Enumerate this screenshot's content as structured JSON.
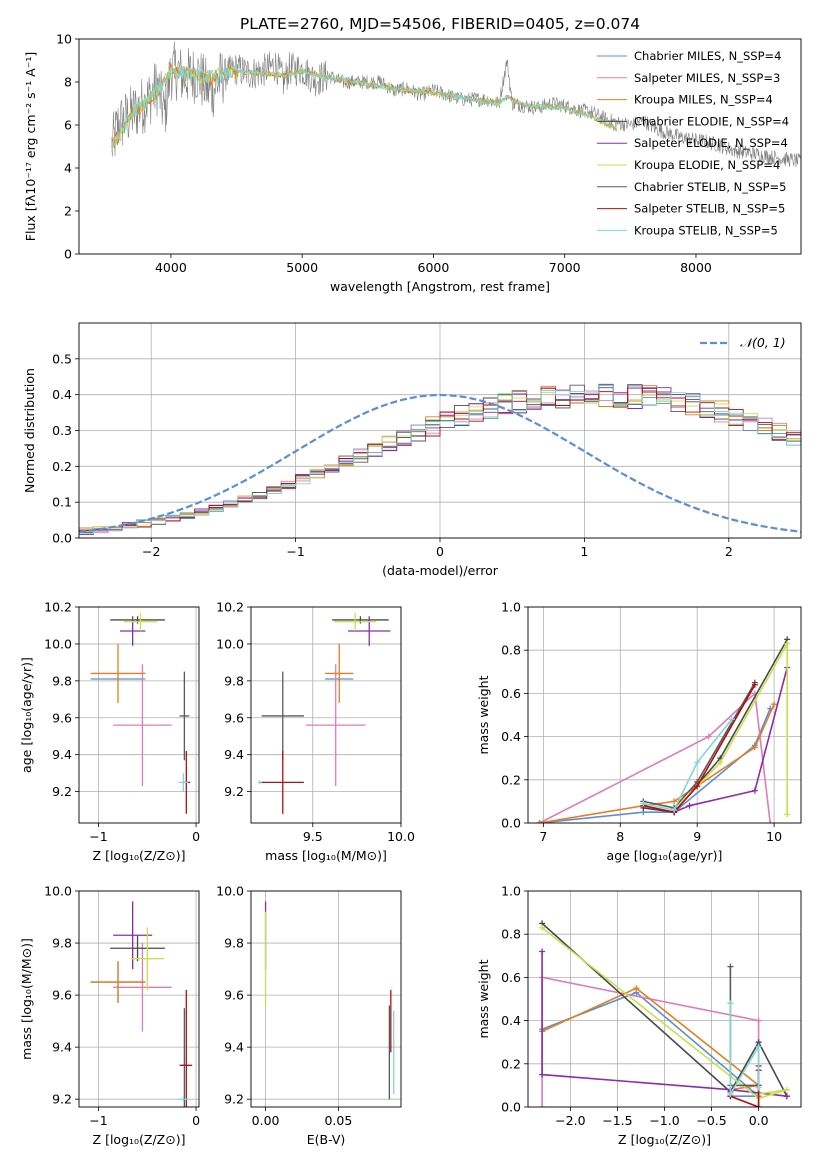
{
  "figure": {
    "title": "PLATE=2760, MJD=54506, FIBERID=0405, z=0.074"
  },
  "colors": {
    "Chabrier MILES": "#5b8ed6",
    "Salpeter MILES": "#e17bb8",
    "Kroupa MILES": "#e67e22",
    "Chabrier ELODIE": "#4a4a4a",
    "Salpeter ELODIE": "#8e2ca8",
    "Kroupa ELODIE": "#c8e04a",
    "Chabrier STELIB": "#5a5a5a",
    "Salpeter STELIB": "#b01010",
    "Kroupa STELIB": "#7fd6dc",
    "gaussian": "#5b8ed6",
    "grid": "#b0b0b0"
  },
  "chart_data": [
    {
      "id": "spectrum",
      "type": "line",
      "title": "PLATE=2760, MJD=54506, FIBERID=0405, z=0.074",
      "xlabel": "wavelength [Angstrom, rest frame]",
      "ylabel": "Flux [fλ10⁻¹⁷ erg cm⁻² s⁻¹ A⁻¹]",
      "xlim": [
        3300,
        8800
      ],
      "ylim": [
        0,
        10
      ],
      "xticks": [
        4000,
        5000,
        6000,
        7000,
        8000
      ],
      "yticks": [
        0,
        2,
        4,
        6,
        8,
        10
      ],
      "grid": false,
      "legend_position": "top-right",
      "legend": [
        "Chabrier MILES, N_SSP=4",
        "Salpeter MILES, N_SSP=3",
        "Kroupa MILES, N_SSP=4",
        "Chabrier ELODIE, N_SSP=4",
        "Salpeter ELODIE, N_SSP=4",
        "Kroupa ELODIE, N_SSP=4",
        "Chabrier STELIB, N_SSP=5",
        "Salpeter STELIB, N_SSP=5",
        "Kroupa STELIB, N_SSP=5"
      ],
      "data_series": {
        "name": "data",
        "x": [
          3550,
          3600,
          3700,
          3800,
          3900,
          3950,
          4000,
          4050,
          4100,
          4200,
          4300,
          4400,
          4500,
          4600,
          4700,
          4800,
          4860,
          4900,
          5000,
          5100,
          5200,
          5300,
          5400,
          5500,
          5600,
          5700,
          5800,
          5900,
          6000,
          6100,
          6200,
          6300,
          6400,
          6500,
          6560,
          6600,
          6700,
          6800,
          6900,
          7000,
          7100,
          7200,
          7300,
          7400,
          7500,
          7600,
          7700,
          7800,
          7900,
          8000,
          8100,
          8200,
          8300,
          8400,
          8500,
          8600,
          8700,
          8800
        ],
        "y": [
          5.0,
          6.0,
          6.5,
          7.0,
          7.8,
          6.5,
          8.5,
          8.5,
          8.2,
          8.4,
          7.5,
          8.3,
          8.6,
          8.4,
          8.5,
          8.8,
          8.0,
          8.6,
          8.6,
          8.1,
          8.3,
          8.0,
          8.0,
          8.0,
          8.0,
          7.6,
          7.7,
          7.4,
          7.6,
          7.4,
          7.2,
          7.2,
          7.2,
          7.0,
          9.0,
          7.0,
          6.9,
          6.8,
          7.0,
          6.9,
          6.7,
          6.6,
          6.3,
          6.1,
          6.0,
          6.2,
          5.8,
          5.6,
          5.4,
          5.3,
          5.2,
          5.0,
          4.8,
          4.7,
          4.6,
          4.5,
          4.4,
          4.3
        ]
      },
      "model_series": {
        "x": [
          3550,
          3700,
          3900,
          4000,
          4100,
          4300,
          4500,
          4700,
          4860,
          5000,
          5200,
          5500,
          5800,
          6000,
          6300,
          6500,
          6560,
          6700,
          7000,
          7200,
          7300,
          7400
        ],
        "y": [
          5.0,
          6.5,
          7.6,
          8.5,
          8.4,
          8.2,
          8.5,
          8.4,
          8.3,
          8.5,
          8.2,
          7.9,
          7.6,
          7.5,
          7.2,
          7.0,
          7.3,
          6.9,
          6.8,
          6.4,
          6.1,
          5.8
        ]
      }
    },
    {
      "id": "residuals",
      "type": "line",
      "xlabel": "(data-model)/error",
      "ylabel": "Normed distribution",
      "xlim": [
        -2.5,
        2.5
      ],
      "ylim": [
        0,
        0.6
      ],
      "xticks": [
        -2,
        -1,
        0,
        1,
        2
      ],
      "yticks": [
        0.0,
        0.1,
        0.2,
        0.3,
        0.4,
        0.5
      ],
      "grid": true,
      "legend_position": "top-right",
      "legend": [
        "𝒩(0, 1)"
      ],
      "hist_bin_width": 0.1,
      "hist_bins_start": -2.5,
      "hist_base": [
        0.018,
        0.022,
        0.028,
        0.034,
        0.04,
        0.047,
        0.055,
        0.063,
        0.073,
        0.083,
        0.095,
        0.107,
        0.12,
        0.134,
        0.149,
        0.164,
        0.18,
        0.196,
        0.213,
        0.23,
        0.247,
        0.264,
        0.28,
        0.296,
        0.312,
        0.326,
        0.34,
        0.352,
        0.363,
        0.372,
        0.38,
        0.386,
        0.391,
        0.394,
        0.397,
        0.398,
        0.398,
        0.397,
        0.394,
        0.391,
        0.386,
        0.38,
        0.372,
        0.363,
        0.352,
        0.34,
        0.326,
        0.312,
        0.296,
        0.28,
        0.264,
        0.247,
        0.23,
        0.213,
        0.196,
        0.18,
        0.164,
        0.149,
        0.134,
        0.12,
        0.107,
        0.095,
        0.083,
        0.073,
        0.063,
        0.055,
        0.047,
        0.04,
        0.034,
        0.028,
        0.022,
        0.018
      ]
    },
    {
      "id": "age-vs-Z",
      "type": "scatter",
      "xlabel": "Z [log₁₀(Z/Z⊙)]",
      "ylabel": "age  [log₁₀(age/yr)]",
      "xlim": [
        -1.2,
        0.03
      ],
      "ylim": [
        9.03,
        10.2
      ],
      "xticks": [
        -1,
        0
      ],
      "yticks": [
        9.2,
        9.4,
        9.6,
        9.8,
        10.0,
        10.2
      ],
      "grid": true,
      "points": [
        {
          "series": "Chabrier MILES",
          "x": -0.8,
          "y": 9.81,
          "xerr": 0.28,
          "yerr": 0.01
        },
        {
          "series": "Salpeter MILES",
          "x": -0.55,
          "y": 9.56,
          "xerr": 0.3,
          "yerr": 0.33
        },
        {
          "series": "Kroupa MILES",
          "x": -0.8,
          "y": 9.84,
          "xerr": 0.28,
          "yerr": 0.16
        },
        {
          "series": "Chabrier ELODIE",
          "x": -0.6,
          "y": 10.13,
          "xerr": 0.28,
          "yerr": 0.02
        },
        {
          "series": "Salpeter ELODIE",
          "x": -0.65,
          "y": 10.07,
          "xerr": 0.13,
          "yerr": 0.08
        },
        {
          "series": "Kroupa ELODIE",
          "x": -0.57,
          "y": 10.12,
          "xerr": 0.17,
          "yerr": 0.05
        },
        {
          "series": "Chabrier STELIB",
          "x": -0.12,
          "y": 9.61,
          "xerr": 0.05,
          "yerr": 0.24
        },
        {
          "series": "Salpeter STELIB",
          "x": -0.1,
          "y": 9.25,
          "xerr": 0.04,
          "yerr": 0.17
        },
        {
          "series": "Kroupa STELIB",
          "x": -0.13,
          "y": 9.25,
          "xerr": 0.05,
          "yerr": 0.05
        }
      ]
    },
    {
      "id": "age-vs-mass",
      "type": "scatter",
      "xlabel": "mass [log₁₀(M/M⊙)]",
      "ylabel": "",
      "xlim": [
        9.15,
        10.0
      ],
      "ylim": [
        9.03,
        10.2
      ],
      "xticks": [
        9.5,
        10.0
      ],
      "yticks": [
        9.2,
        9.4,
        9.6,
        9.8,
        10.0,
        10.2
      ],
      "grid": true,
      "points": [
        {
          "series": "Chabrier MILES",
          "x": 9.65,
          "y": 9.81,
          "xerr": 0.08,
          "yerr": 0.01
        },
        {
          "series": "Salpeter MILES",
          "x": 9.63,
          "y": 9.56,
          "xerr": 0.17,
          "yerr": 0.33
        },
        {
          "series": "Kroupa MILES",
          "x": 9.65,
          "y": 9.84,
          "xerr": 0.08,
          "yerr": 0.16
        },
        {
          "series": "Chabrier ELODIE",
          "x": 9.77,
          "y": 10.13,
          "xerr": 0.16,
          "yerr": 0.02
        },
        {
          "series": "Salpeter ELODIE",
          "x": 9.82,
          "y": 10.07,
          "xerr": 0.12,
          "yerr": 0.08
        },
        {
          "series": "Kroupa ELODIE",
          "x": 9.74,
          "y": 10.12,
          "xerr": 0.12,
          "yerr": 0.05
        },
        {
          "series": "Chabrier STELIB",
          "x": 9.33,
          "y": 9.61,
          "xerr": 0.12,
          "yerr": 0.24
        },
        {
          "series": "Salpeter STELIB",
          "x": 9.33,
          "y": 9.25,
          "xerr": 0.12,
          "yerr": 0.17
        },
        {
          "series": "Kroupa STELIB",
          "x": 9.2,
          "y": 9.25,
          "xerr": 0.01,
          "yerr": 0.01
        }
      ]
    },
    {
      "id": "weight-vs-age",
      "type": "line",
      "xlabel": "age  [log₁₀(age/yr)]",
      "ylabel": "mass weight",
      "xlim": [
        6.8,
        10.35
      ],
      "ylim": [
        0,
        1.0
      ],
      "xticks": [
        7,
        8,
        9,
        10
      ],
      "yticks": [
        0.0,
        0.2,
        0.4,
        0.6,
        0.8,
        1.0
      ],
      "grid": true,
      "series": [
        {
          "name": "Chabrier MILES",
          "x": [
            6.95,
            8.3,
            8.7,
            9.75,
            9.95
          ],
          "y": [
            0.0,
            0.05,
            0.05,
            0.36,
            0.53
          ]
        },
        {
          "name": "Salpeter MILES",
          "x": [
            6.95,
            9.15,
            9.75,
            9.95
          ],
          "y": [
            0.0,
            0.4,
            0.6,
            0.0
          ]
        },
        {
          "name": "Kroupa MILES",
          "x": [
            6.95,
            8.3,
            8.7,
            9.75,
            10.0
          ],
          "y": [
            0.0,
            0.08,
            0.1,
            0.35,
            0.55
          ]
        },
        {
          "name": "Chabrier ELODIE",
          "x": [
            8.3,
            8.7,
            9.3,
            10.17
          ],
          "y": [
            0.07,
            0.05,
            0.3,
            0.85
          ]
        },
        {
          "name": "Salpeter ELODIE",
          "x": [
            8.7,
            8.9,
            9.75,
            10.17
          ],
          "y": [
            0.05,
            0.08,
            0.15,
            0.72
          ]
        },
        {
          "name": "Kroupa ELODIE",
          "x": [
            8.7,
            9.3,
            10.17,
            10.17
          ],
          "y": [
            0.06,
            0.28,
            0.83,
            0.04
          ]
        },
        {
          "name": "Chabrier STELIB",
          "x": [
            8.3,
            8.7,
            9.0,
            9.75
          ],
          "y": [
            0.1,
            0.07,
            0.19,
            0.65
          ]
        },
        {
          "name": "Salpeter STELIB",
          "x": [
            8.3,
            8.7,
            9.0,
            9.75
          ],
          "y": [
            0.08,
            0.05,
            0.17,
            0.64
          ]
        },
        {
          "name": "Kroupa STELIB",
          "x": [
            8.3,
            8.7,
            9.0,
            9.45
          ],
          "y": [
            0.09,
            0.06,
            0.28,
            0.48
          ]
        }
      ]
    },
    {
      "id": "mass-vs-Z",
      "type": "scatter",
      "xlabel": "Z [log₁₀(Z/Z⊙)]",
      "ylabel": "mass [log₁₀(M/M⊙)]",
      "xlim": [
        -1.2,
        0.03
      ],
      "ylim": [
        9.17,
        10.0
      ],
      "xticks": [
        -1,
        0
      ],
      "yticks": [
        9.2,
        9.4,
        9.6,
        9.8,
        10.0
      ],
      "grid": true,
      "points": [
        {
          "series": "Chabrier MILES",
          "x": -0.8,
          "y": 9.65,
          "xerr": 0.28,
          "yerr": 0.08
        },
        {
          "series": "Salpeter MILES",
          "x": -0.55,
          "y": 9.63,
          "xerr": 0.3,
          "yerr": 0.17
        },
        {
          "series": "Kroupa MILES",
          "x": -0.8,
          "y": 9.65,
          "xerr": 0.28,
          "yerr": 0.08
        },
        {
          "series": "Chabrier ELODIE",
          "x": -0.6,
          "y": 9.78,
          "xerr": 0.28,
          "yerr": 0.05
        },
        {
          "series": "Salpeter ELODIE",
          "x": -0.65,
          "y": 9.83,
          "xerr": 0.2,
          "yerr": 0.13
        },
        {
          "series": "Kroupa ELODIE",
          "x": -0.5,
          "y": 9.74,
          "xerr": 0.17,
          "yerr": 0.12
        },
        {
          "series": "Chabrier STELIB",
          "x": -0.12,
          "y": 9.33,
          "xerr": 0.05,
          "yerr": 0.22
        },
        {
          "series": "Salpeter STELIB",
          "x": -0.1,
          "y": 9.33,
          "xerr": 0.06,
          "yerr": 0.29
        },
        {
          "series": "Kroupa STELIB",
          "x": -0.13,
          "y": 9.2,
          "xerr": 0.05,
          "yerr": 0.01
        }
      ]
    },
    {
      "id": "mass-vs-ebv",
      "type": "scatter",
      "xlabel": "E(B-V)",
      "ylabel": "",
      "xlim": [
        -0.01,
        0.093
      ],
      "ylim": [
        9.17,
        10.0
      ],
      "xticks": [
        0.0,
        0.05
      ],
      "yticks": [
        9.2,
        9.4,
        9.6,
        9.8,
        10.0
      ],
      "grid": true,
      "points": [
        {
          "series": "Salpeter ELODIE",
          "x": 0.0,
          "y": 9.83,
          "xerr": 0,
          "yerr": 0.13
        },
        {
          "series": "Kroupa ELODIE",
          "x": 0.0,
          "y": 9.74,
          "xerr": 0,
          "yerr": 0.18
        },
        {
          "series": "Chabrier STELIB",
          "x": 0.085,
          "y": 9.38,
          "xerr": 0,
          "yerr": 0.18
        },
        {
          "series": "Salpeter STELIB",
          "x": 0.086,
          "y": 9.5,
          "xerr": 0,
          "yerr": 0.12
        },
        {
          "series": "Kroupa STELIB",
          "x": 0.088,
          "y": 9.38,
          "xerr": 0,
          "yerr": 0.16
        }
      ]
    },
    {
      "id": "weight-vs-Z",
      "type": "line",
      "xlabel": "Z [log₁₀(Z/Z⊙)]",
      "ylabel": "mass weight",
      "xlim": [
        -2.45,
        0.45
      ],
      "ylim": [
        0,
        1.0
      ],
      "xticks": [
        -2.0,
        -1.5,
        -1.0,
        -0.5,
        0.0
      ],
      "yticks": [
        0.0,
        0.2,
        0.4,
        0.6,
        0.8,
        1.0
      ],
      "grid": true,
      "series": [
        {
          "name": "Chabrier MILES",
          "x": [
            -2.3,
            -1.3,
            0.0,
            -0.3
          ],
          "y": [
            0.36,
            0.53,
            0.05,
            0.05
          ]
        },
        {
          "name": "Salpeter MILES",
          "x": [
            -2.3,
            -2.3,
            0.0,
            0.0
          ],
          "y": [
            0.0,
            0.6,
            0.4,
            0.0
          ]
        },
        {
          "name": "Kroupa MILES",
          "x": [
            -2.3,
            -1.3,
            0.0,
            -0.3
          ],
          "y": [
            0.35,
            0.55,
            0.1,
            0.08
          ]
        },
        {
          "name": "Chabrier ELODIE",
          "x": [
            -2.3,
            -0.3,
            0.0,
            0.3
          ],
          "y": [
            0.85,
            0.07,
            0.3,
            0.05
          ]
        },
        {
          "name": "Salpeter ELODIE",
          "x": [
            -2.3,
            -2.3,
            -0.3,
            0.3
          ],
          "y": [
            0.72,
            0.15,
            0.08,
            0.05
          ]
        },
        {
          "name": "Kroupa ELODIE",
          "x": [
            -2.3,
            0.0,
            0.3,
            0.0
          ],
          "y": [
            0.83,
            0.04,
            0.08,
            0.06
          ]
        },
        {
          "name": "Chabrier STELIB",
          "x": [
            -0.3,
            -0.3,
            0.0,
            0.0
          ],
          "y": [
            0.65,
            0.1,
            0.1,
            0.19
          ]
        },
        {
          "name": "Salpeter STELIB",
          "x": [
            -0.3,
            0.0,
            0.0
          ],
          "y": [
            0.05,
            0.0,
            0.17
          ]
        },
        {
          "name": "Kroupa STELIB",
          "x": [
            -0.3,
            -0.3,
            0.0,
            0.0
          ],
          "y": [
            0.48,
            0.06,
            0.28,
            0.09
          ]
        }
      ]
    }
  ]
}
